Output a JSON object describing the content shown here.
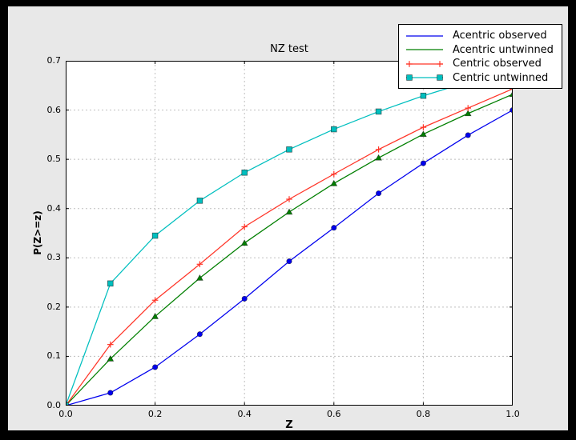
{
  "window": {
    "outer_bg": "#000000",
    "figure_bg": "#e8e8e8",
    "axes_bg": "#ffffff",
    "grid_color": "#bfbfbf",
    "frame_color": "#000000"
  },
  "chart_data": {
    "type": "line",
    "title": "NZ test",
    "xlabel": "Z",
    "ylabel": "P(Z>=z)",
    "xlim": [
      0.0,
      1.0
    ],
    "ylim": [
      0.0,
      0.7
    ],
    "xtick_labels": [
      "0.0",
      "0.2",
      "0.4",
      "0.6",
      "0.8",
      "1.0"
    ],
    "ytick_labels": [
      "0.0",
      "0.1",
      "0.2",
      "0.3",
      "0.4",
      "0.5",
      "0.6",
      "0.7"
    ],
    "grid": "dashed",
    "legend_position": "upper right",
    "x": [
      0.0,
      0.1,
      0.2,
      0.3,
      0.4,
      0.5,
      0.6,
      0.7,
      0.8,
      0.9,
      1.0
    ],
    "series": [
      {
        "name": "Acentric observed",
        "color": "#0000ee",
        "marker": "circle",
        "legend_sample": "plain-line",
        "values": [
          0.0,
          0.026,
          0.078,
          0.145,
          0.217,
          0.293,
          0.361,
          0.431,
          0.492,
          0.549,
          0.6
        ]
      },
      {
        "name": "Acentric untwinned",
        "color": "#007f00",
        "marker": "triangle",
        "legend_sample": "plain-line",
        "values": [
          0.0,
          0.095,
          0.181,
          0.259,
          0.33,
          0.393,
          0.451,
          0.503,
          0.551,
          0.593,
          0.632
        ]
      },
      {
        "name": "Centric observed",
        "color": "#ff3528",
        "marker": "plus",
        "legend_sample": "line-with-plus-markers",
        "values": [
          0.0,
          0.124,
          0.214,
          0.287,
          0.363,
          0.419,
          0.47,
          0.52,
          0.565,
          0.604,
          0.643
        ]
      },
      {
        "name": "Centric untwinned",
        "color": "#00bfbf",
        "marker": "square",
        "legend_sample": "line-with-square-markers",
        "values": [
          0.0,
          0.248,
          0.345,
          0.416,
          0.473,
          0.52,
          0.561,
          0.597,
          0.629,
          0.657,
          0.683
        ]
      }
    ]
  }
}
